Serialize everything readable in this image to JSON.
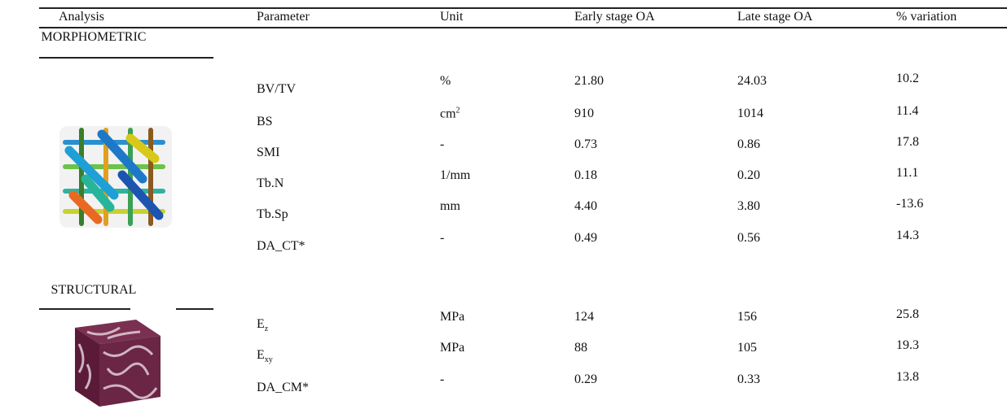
{
  "header": [
    "Analysis",
    "Parameter",
    "Unit",
    "Early stage OA",
    "Late stage OA",
    "% variation"
  ],
  "sections": [
    {
      "label": "MORPHOMETRIC",
      "rows": [
        {
          "parameter": "BV/TV",
          "unit": "%",
          "early": "21.80",
          "late": "24.03",
          "variation": "10.2"
        },
        {
          "parameter": "BS",
          "unit": {
            "base": "cm",
            "sup": "2"
          },
          "early": "910",
          "late": "1014",
          "variation": "11.4"
        },
        {
          "parameter": "SMI",
          "unit": "-",
          "early": "0.73",
          "late": "0.86",
          "variation": "17.8"
        },
        {
          "parameter": "Tb.N",
          "unit": "1/mm",
          "early": "0.18",
          "late": "0.20",
          "variation": "11.1"
        },
        {
          "parameter": "Tb.Sp",
          "unit": "mm",
          "early": "4.40",
          "late": "3.80",
          "variation": "-13.6"
        },
        {
          "parameter": "DA_CT*",
          "unit": "-",
          "early": "0.49",
          "late": "0.56",
          "variation": "14.3"
        }
      ]
    },
    {
      "label": "STRUCTURAL",
      "rows": [
        {
          "parameter": {
            "base": "E",
            "sub": "z"
          },
          "unit": "MPa",
          "early": "124",
          "late": "156",
          "variation": "25.8"
        },
        {
          "parameter": {
            "base": "E",
            "sub": "xy"
          },
          "unit": "MPa",
          "early": "88",
          "late": "105",
          "variation": "19.3"
        },
        {
          "parameter": "DA_CM*",
          "unit": "-",
          "early": "0.29",
          "late": "0.33",
          "variation": "13.8"
        }
      ]
    }
  ]
}
